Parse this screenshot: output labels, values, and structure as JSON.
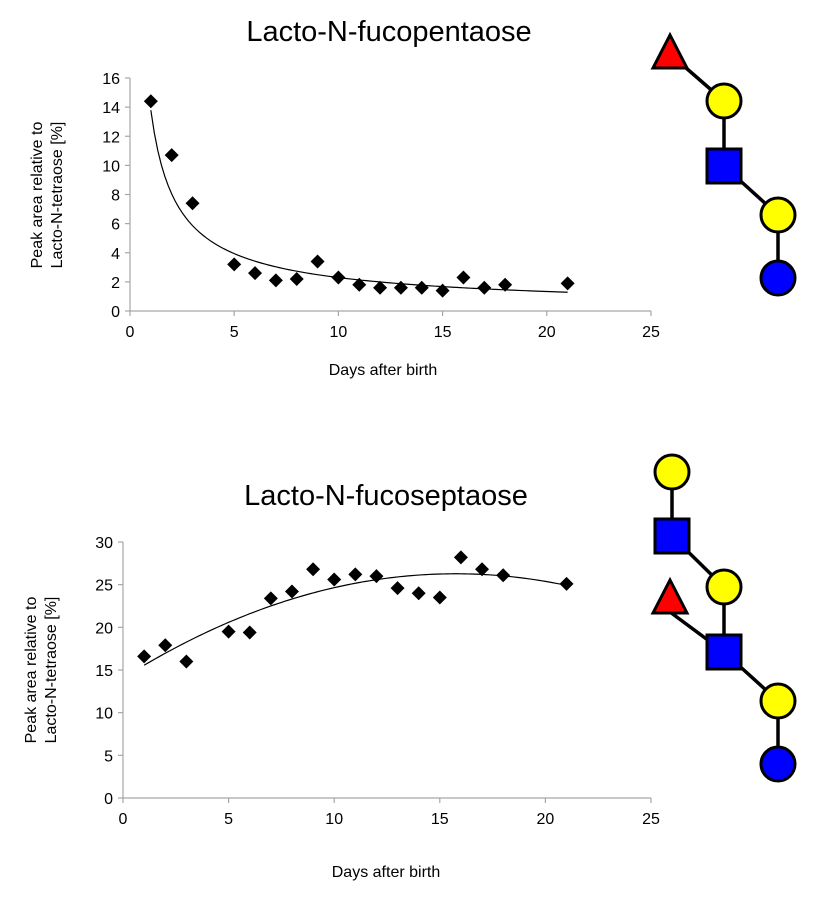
{
  "chart_data": [
    {
      "type": "scatter",
      "title": "Lacto-N-fucopentaose",
      "xlabel": "Days after birth",
      "ylabel_lines": [
        "Peak area relative to",
        "Lacto-N-tetraose [%]"
      ],
      "xlim": [
        0,
        25
      ],
      "ylim": [
        0,
        16
      ],
      "xticks": [
        0,
        5,
        10,
        15,
        20,
        25
      ],
      "yticks": [
        0,
        2,
        4,
        6,
        8,
        10,
        12,
        14,
        16
      ],
      "grid": false,
      "trendline": "power",
      "x": [
        1,
        2,
        3,
        5,
        6,
        7,
        8,
        9,
        10,
        11,
        12,
        13,
        14,
        15,
        16,
        17,
        18,
        21
      ],
      "y": [
        14.4,
        10.7,
        7.4,
        3.2,
        2.6,
        2.1,
        2.2,
        3.4,
        2.3,
        1.8,
        1.6,
        1.6,
        1.6,
        1.4,
        2.3,
        1.6,
        1.8,
        1.9
      ],
      "structure": [
        {
          "type": "triangle",
          "monosaccharide": "Fucose",
          "color": "#ff0000"
        },
        {
          "type": "circle",
          "monosaccharide": "Galactose",
          "color": "#ffff00"
        },
        {
          "type": "square",
          "monosaccharide": "GlcNAc",
          "color": "#0000ff"
        },
        {
          "type": "circle",
          "monosaccharide": "Galactose",
          "color": "#ffff00"
        },
        {
          "type": "circle",
          "monosaccharide": "Glucose",
          "color": "#0000ff"
        }
      ]
    },
    {
      "type": "scatter",
      "title": "Lacto-N-fucoseptaose",
      "xlabel": "Days after birth",
      "ylabel_lines": [
        "Peak area relative to",
        "Lacto-N-tetraose [%]"
      ],
      "xlim": [
        0,
        25
      ],
      "ylim": [
        0,
        30
      ],
      "xticks": [
        0,
        5,
        10,
        15,
        20,
        25
      ],
      "yticks": [
        0,
        5,
        10,
        15,
        20,
        25,
        30
      ],
      "grid": false,
      "trendline": "polynomial",
      "x": [
        1,
        2,
        3,
        5,
        6,
        7,
        8,
        9,
        10,
        11,
        12,
        13,
        14,
        15,
        16,
        17,
        18,
        21
      ],
      "y": [
        16.6,
        17.9,
        16.0,
        19.5,
        19.4,
        23.4,
        24.2,
        26.8,
        25.6,
        26.2,
        26.0,
        24.6,
        24.0,
        23.5,
        28.2,
        26.8,
        26.1,
        25.1
      ],
      "structure": [
        {
          "type": "circle",
          "monosaccharide": "Galactose",
          "color": "#ffff00"
        },
        {
          "type": "square",
          "monosaccharide": "GlcNAc",
          "color": "#0000ff"
        },
        {
          "type": "circle",
          "monosaccharide": "Galactose",
          "color": "#ffff00"
        },
        {
          "type": "triangle",
          "monosaccharide": "Fucose",
          "color": "#ff0000"
        },
        {
          "type": "square",
          "monosaccharide": "GlcNAc",
          "color": "#0000ff"
        },
        {
          "type": "circle",
          "monosaccharide": "Galactose",
          "color": "#ffff00"
        },
        {
          "type": "circle",
          "monosaccharide": "Glucose",
          "color": "#0000ff"
        }
      ]
    }
  ]
}
